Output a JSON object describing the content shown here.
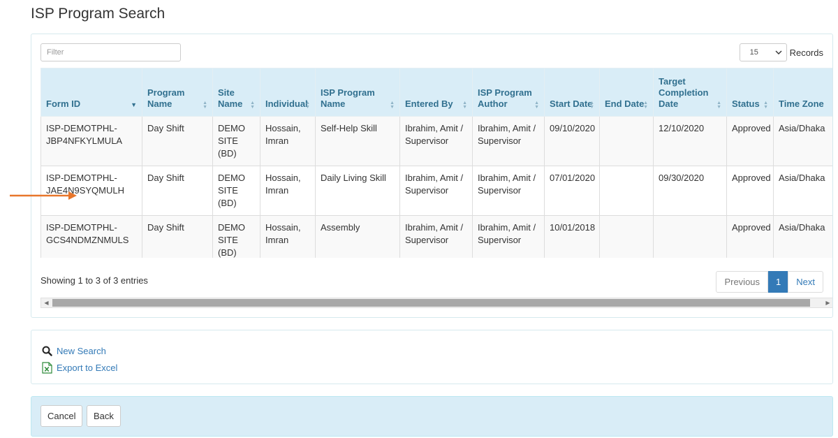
{
  "page": {
    "title": "ISP Program Search"
  },
  "filter": {
    "placeholder": "Filter",
    "value": ""
  },
  "records": {
    "selected": "15",
    "label": "Records"
  },
  "table": {
    "columns": [
      {
        "label": "Form ID",
        "sort": "desc"
      },
      {
        "label": "Program Name",
        "sort": "both"
      },
      {
        "label": "Site Name",
        "sort": "both"
      },
      {
        "label": "Individual",
        "sort": "both"
      },
      {
        "label": "ISP Program Name",
        "sort": "both"
      },
      {
        "label": "Entered By",
        "sort": "both"
      },
      {
        "label": "ISP Program Author",
        "sort": "both"
      },
      {
        "label": "Start Date",
        "sort": "both"
      },
      {
        "label": "End Date",
        "sort": "both"
      },
      {
        "label": "Target Completion Date",
        "sort": "both"
      },
      {
        "label": "Status",
        "sort": "both"
      },
      {
        "label": "Time Zone",
        "sort": "none"
      }
    ],
    "rows": [
      [
        "ISP-DEMOTPHL-JBP4NFKYLMULA",
        "Day Shift",
        "DEMO SITE (BD)",
        "Hossain, Imran",
        "Self-Help Skill",
        "Ibrahim, Amit / Supervisor",
        "Ibrahim, Amit / Supervisor",
        "09/10/2020",
        "",
        "12/10/2020",
        "Approved",
        "Asia/Dhaka"
      ],
      [
        "ISP-DEMOTPHL-JAE4N9SYQMULH",
        "Day Shift",
        "DEMO SITE (BD)",
        "Hossain, Imran",
        "Daily Living Skill",
        "Ibrahim, Amit / Supervisor",
        "Ibrahim, Amit / Supervisor",
        "07/01/2020",
        "",
        "09/30/2020",
        "Approved",
        "Asia/Dhaka"
      ],
      [
        "ISP-DEMOTPHL-GCS4NDMZNMULS",
        "Day Shift",
        "DEMO SITE (BD)",
        "Hossain, Imran",
        "Assembly",
        "Ibrahim, Amit / Supervisor",
        "Ibrahim, Amit / Supervisor",
        "10/01/2018",
        "",
        "",
        "Approved",
        "Asia/Dhaka"
      ]
    ]
  },
  "info": "Showing 1 to 3 of 3 entries",
  "pagination": {
    "previous": "Previous",
    "current": "1",
    "next": "Next"
  },
  "actions": {
    "new_search": "New Search",
    "export_excel": "Export to Excel"
  },
  "buttons": {
    "cancel": "Cancel",
    "back": "Back"
  },
  "icons": {
    "search": "search-icon",
    "excel": "excel-icon",
    "annotation": "orange-arrow-icon"
  },
  "colors": {
    "header_bg": "#d9edf7",
    "header_text": "#31708f",
    "link": "#337ab7",
    "annotation_arrow": "#e8762b"
  }
}
